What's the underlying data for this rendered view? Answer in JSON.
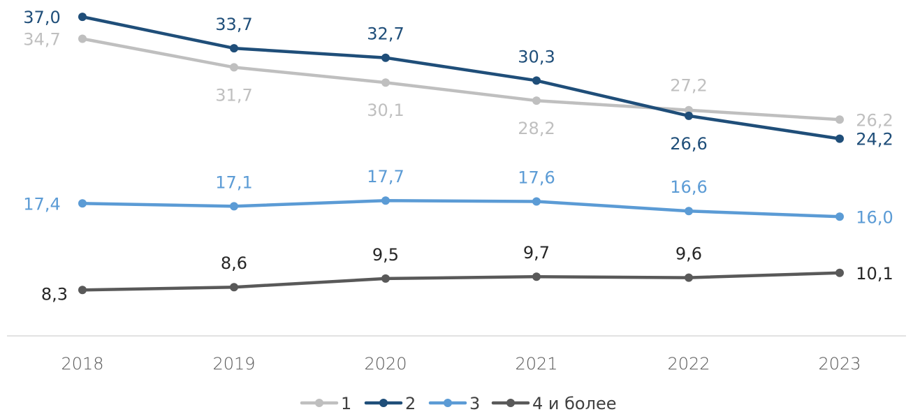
{
  "chart_data": {
    "type": "line",
    "categories": [
      "2018",
      "2019",
      "2020",
      "2021",
      "2022",
      "2023"
    ],
    "series": [
      {
        "name": "1",
        "color": "#BFBFBF",
        "values": [
          34.7,
          31.7,
          30.1,
          28.2,
          27.2,
          26.2
        ],
        "labels": [
          "34,7",
          "31,7",
          "30,1",
          "28,2",
          "27,2",
          "26,2"
        ]
      },
      {
        "name": "2",
        "color": "#1F4E79",
        "values": [
          37.0,
          33.7,
          32.7,
          30.3,
          26.6,
          24.2
        ],
        "labels": [
          "37,0",
          "33,7",
          "32,7",
          "30,3",
          "26,6",
          "24,2"
        ]
      },
      {
        "name": "3",
        "color": "#5B9BD5",
        "values": [
          17.4,
          17.1,
          17.7,
          17.6,
          16.6,
          16.0
        ],
        "labels": [
          "17,4",
          "17,1",
          "17,7",
          "17,6",
          "16,6",
          "16,0"
        ]
      },
      {
        "name": "4 и более",
        "color": "#595959",
        "values": [
          8.3,
          8.6,
          9.5,
          9.7,
          9.6,
          10.1
        ],
        "labels": [
          "8,3",
          "8,6",
          "9,5",
          "9,7",
          "9,6",
          "10,1"
        ]
      }
    ],
    "title": "",
    "xlabel": "",
    "ylabel": "",
    "grid": false,
    "legend": "bottom",
    "label_color_series_4": "#262626"
  }
}
